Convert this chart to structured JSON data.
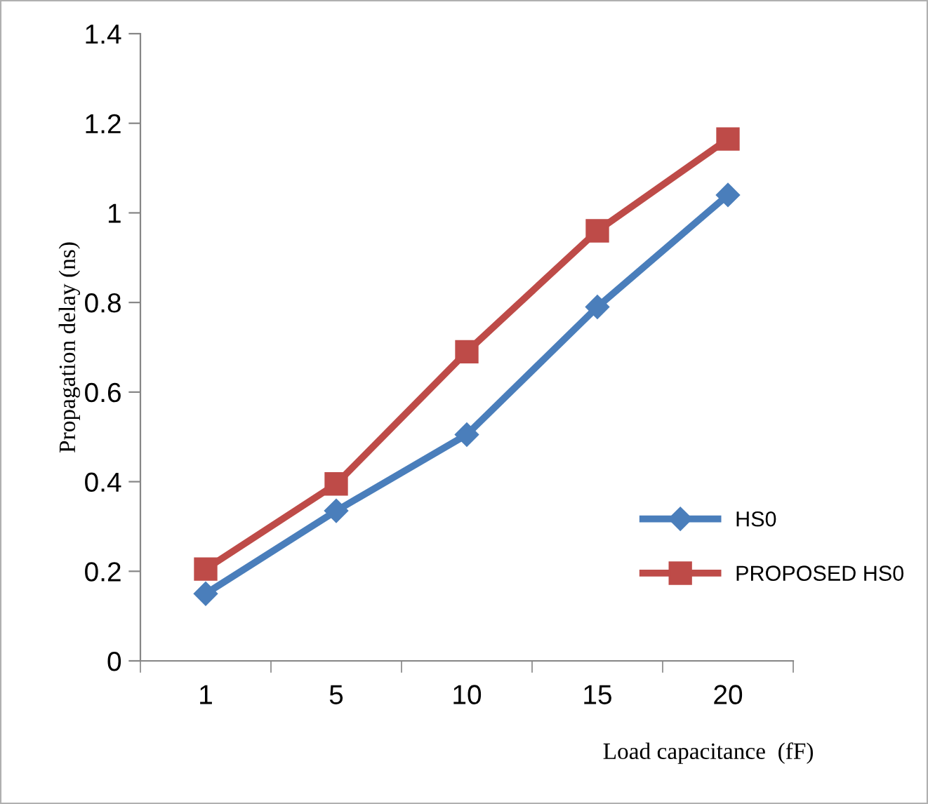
{
  "chart_data": {
    "type": "line",
    "xlabel": "Load capacitance  (fF)",
    "ylabel": "Propagation delay (ns)",
    "categories": [
      "1",
      "5",
      "10",
      "15",
      "20"
    ],
    "series": [
      {
        "name": "HS0",
        "color": "#4a7ebb",
        "values": [
          0.15,
          0.335,
          0.505,
          0.79,
          1.04
        ],
        "marker": "diamond"
      },
      {
        "name": "PROPOSED HS0",
        "color": "#be4b48",
        "values": [
          0.205,
          0.395,
          0.69,
          0.96,
          1.165
        ],
        "marker": "square"
      }
    ],
    "ylim": [
      0,
      1.4
    ],
    "yticks": [
      0,
      0.2,
      0.4,
      0.6,
      0.8,
      1,
      1.2,
      1.4
    ],
    "grid": false,
    "legend": "right",
    "line_style": "solid"
  }
}
